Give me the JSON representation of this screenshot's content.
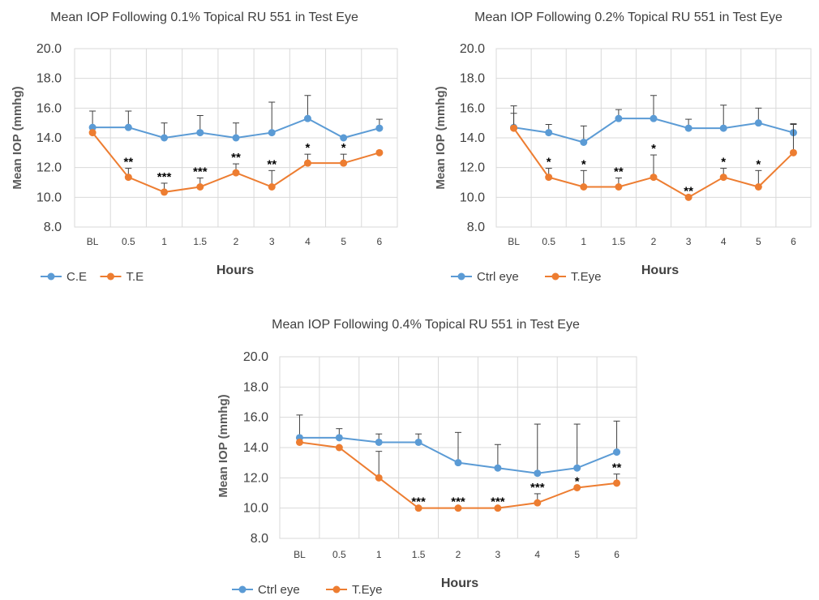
{
  "colors": {
    "control": "#5B9BD5",
    "test": "#ED7D31",
    "grid": "#D9D9D9",
    "errorbar": "#404040"
  },
  "chart_data": [
    {
      "type": "line",
      "title": "Mean IOP Following 0.1% Topical RU 551 in Test Eye",
      "xlabel": "Hours",
      "ylabel": "Mean IOP (mmhg)",
      "ylim": [
        8.0,
        20.0
      ],
      "yticks": [
        "8.0",
        "10.0",
        "12.0",
        "14.0",
        "16.0",
        "18.0",
        "20.0"
      ],
      "categories": [
        "BL",
        "0.5",
        "1",
        "1.5",
        "2",
        "3",
        "4",
        "5",
        "6"
      ],
      "grid": true,
      "legend_position": "bottom-left",
      "series": [
        {
          "name": "C.E",
          "role": "control",
          "values": [
            14.7,
            14.7,
            14.0,
            14.35,
            14.0,
            14.35,
            15.3,
            14.0,
            14.65
          ],
          "error": [
            1.1,
            1.1,
            1.0,
            1.15,
            1.0,
            2.05,
            1.55,
            0.1,
            0.6
          ]
        },
        {
          "name": "T.E",
          "role": "test",
          "values": [
            14.35,
            11.35,
            10.35,
            10.7,
            11.65,
            10.7,
            12.3,
            12.3,
            13.0
          ],
          "error": [
            0.0,
            0.6,
            0.6,
            0.6,
            0.6,
            1.1,
            0.6,
            0.6,
            0.0
          ]
        }
      ],
      "significance": [
        {
          "index": 1,
          "label": "**"
        },
        {
          "index": 2,
          "label": "***"
        },
        {
          "index": 3,
          "label": "***"
        },
        {
          "index": 4,
          "label": "**"
        },
        {
          "index": 5,
          "label": "**"
        },
        {
          "index": 6,
          "label": "*"
        },
        {
          "index": 7,
          "label": "*"
        }
      ]
    },
    {
      "type": "line",
      "title": "Mean IOP Following 0.2% Topical RU 551 in Test Eye",
      "xlabel": "Hours",
      "ylabel": "Mean IOP (mmhg)",
      "ylim": [
        8.0,
        20.0
      ],
      "yticks": [
        "8.0",
        "10.0",
        "12.0",
        "14.0",
        "16.0",
        "18.0",
        "20.0"
      ],
      "categories": [
        "BL",
        "0.5",
        "1",
        "1.5",
        "2",
        "3",
        "4",
        "5",
        "6"
      ],
      "grid": true,
      "legend_position": "bottom-left",
      "series": [
        {
          "name": "Ctrl eye",
          "role": "control",
          "values": [
            14.7,
            14.35,
            13.7,
            15.3,
            15.3,
            14.65,
            14.65,
            15.0,
            14.35
          ],
          "error": [
            1.45,
            0.55,
            1.1,
            0.6,
            1.55,
            0.6,
            1.55,
            1.0,
            0.6
          ]
        },
        {
          "name": "T.Eye",
          "role": "test",
          "values": [
            14.65,
            11.35,
            10.7,
            10.7,
            11.35,
            10.0,
            11.35,
            10.7,
            13.0
          ],
          "error": [
            1.0,
            0.6,
            1.1,
            0.6,
            1.5,
            0.0,
            0.6,
            1.1,
            1.9
          ]
        }
      ],
      "significance": [
        {
          "index": 1,
          "label": "*"
        },
        {
          "index": 2,
          "label": "*"
        },
        {
          "index": 3,
          "label": "**"
        },
        {
          "index": 4,
          "label": "*"
        },
        {
          "index": 5,
          "label": "**"
        },
        {
          "index": 6,
          "label": "*"
        },
        {
          "index": 7,
          "label": "*"
        }
      ]
    },
    {
      "type": "line",
      "title": "Mean IOP Following 0.4% Topical RU 551 in Test Eye",
      "xlabel": "Hours",
      "ylabel": "Mean IOP (mmhg)",
      "ylim": [
        8.0,
        20.0
      ],
      "yticks": [
        "8.0",
        "10.0",
        "12.0",
        "14.0",
        "16.0",
        "18.0",
        "20.0"
      ],
      "categories": [
        "BL",
        "0.5",
        "1",
        "1.5",
        "2",
        "3",
        "4",
        "5",
        "6"
      ],
      "grid": true,
      "legend_position": "bottom-left",
      "series": [
        {
          "name": "Ctrl eye",
          "role": "control",
          "values": [
            14.65,
            14.65,
            14.35,
            14.35,
            13.0,
            12.65,
            12.3,
            12.65,
            13.7
          ],
          "error": [
            1.5,
            0.6,
            0.55,
            0.55,
            2.0,
            1.55,
            3.25,
            2.9,
            2.05
          ]
        },
        {
          "name": "T.Eye",
          "role": "test",
          "values": [
            14.35,
            14.0,
            12.0,
            10.0,
            10.0,
            10.0,
            10.35,
            11.35,
            11.65
          ],
          "error": [
            0.0,
            0.0,
            1.75,
            0.0,
            0.0,
            0.0,
            0.6,
            0.0,
            0.6
          ]
        }
      ],
      "significance": [
        {
          "index": 3,
          "label": "***"
        },
        {
          "index": 4,
          "label": "***"
        },
        {
          "index": 5,
          "label": "***"
        },
        {
          "index": 6,
          "label": "***"
        },
        {
          "index": 7,
          "label": "*"
        },
        {
          "index": 8,
          "label": "**"
        }
      ]
    }
  ]
}
